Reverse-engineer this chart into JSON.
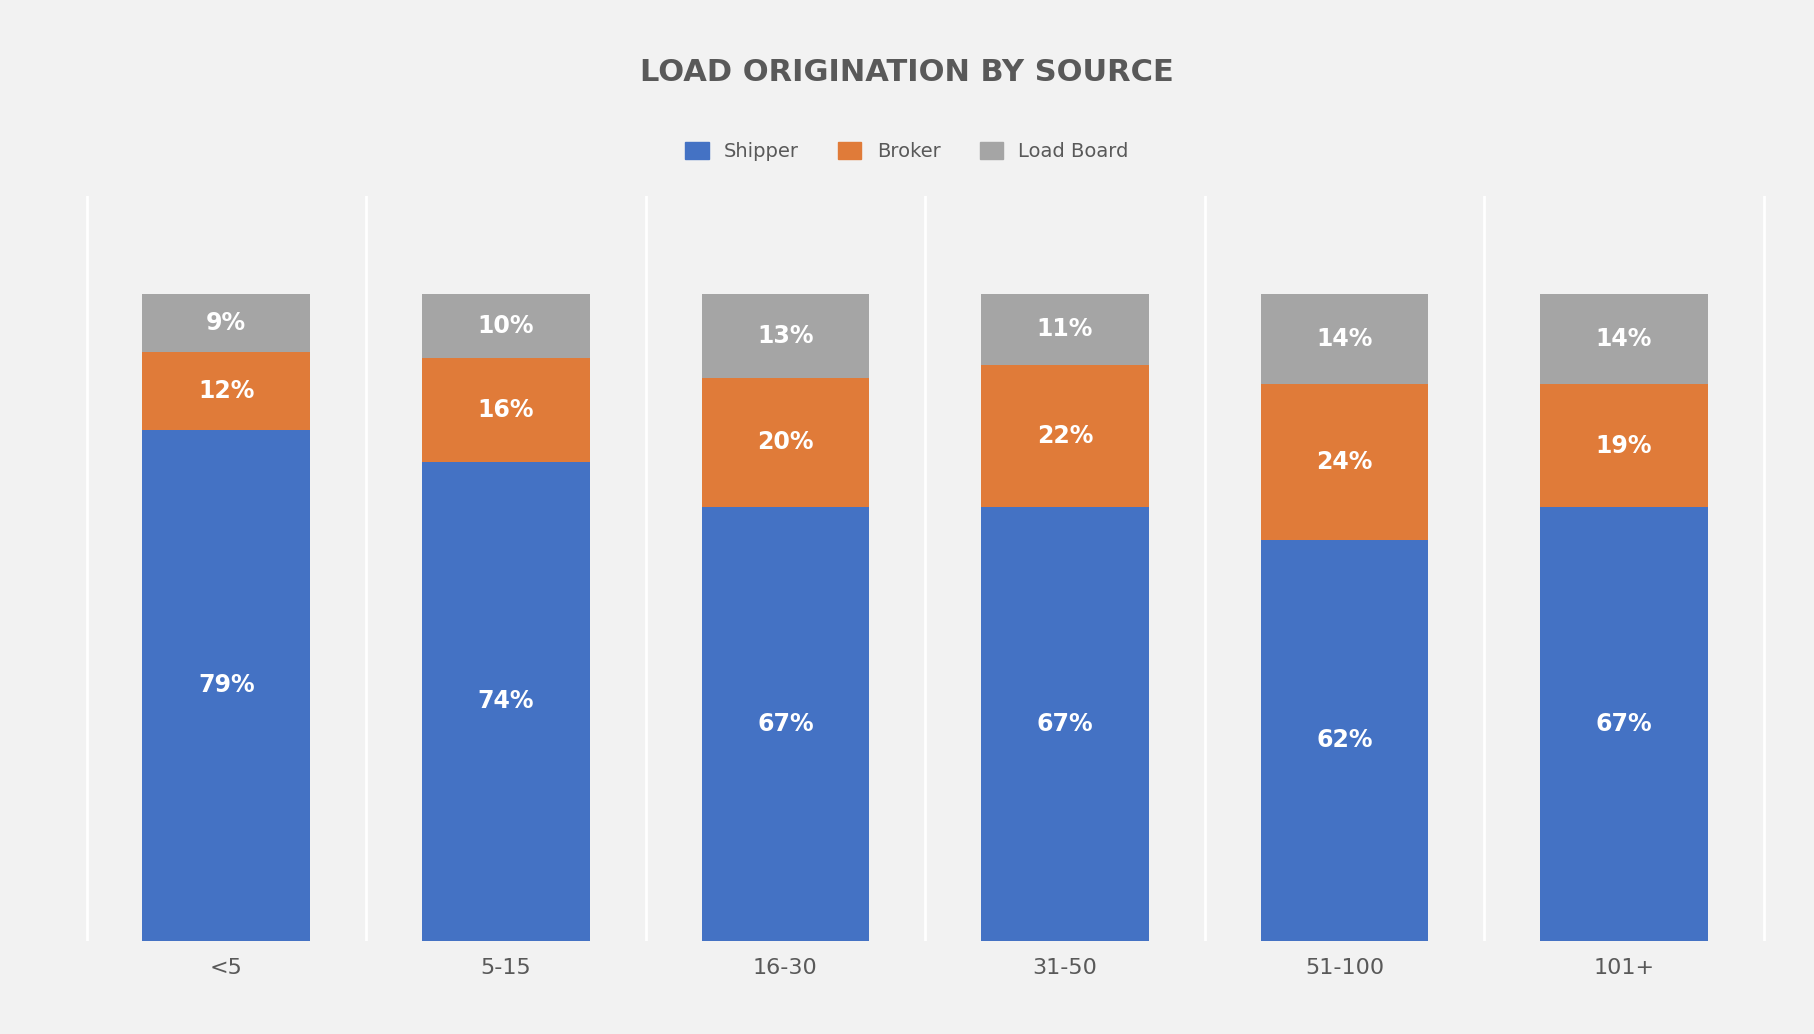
{
  "title": "LOAD ORIGINATION BY SOURCE",
  "categories": [
    "<5",
    "5-15",
    "16-30",
    "31-50",
    "51-100",
    "101+"
  ],
  "shipper": [
    79,
    74,
    67,
    67,
    62,
    67
  ],
  "broker": [
    12,
    16,
    20,
    22,
    24,
    19
  ],
  "load_board": [
    9,
    10,
    13,
    11,
    14,
    14
  ],
  "shipper_color": "#4472C4",
  "broker_color": "#E07B39",
  "load_board_color": "#A5A5A5",
  "background_color": "#F2F2F2",
  "text_color": "#595959",
  "title_fontsize": 22,
  "label_fontsize": 17,
  "tick_fontsize": 16,
  "legend_fontsize": 14,
  "bar_width": 0.6,
  "ylim": [
    0,
    115
  ]
}
